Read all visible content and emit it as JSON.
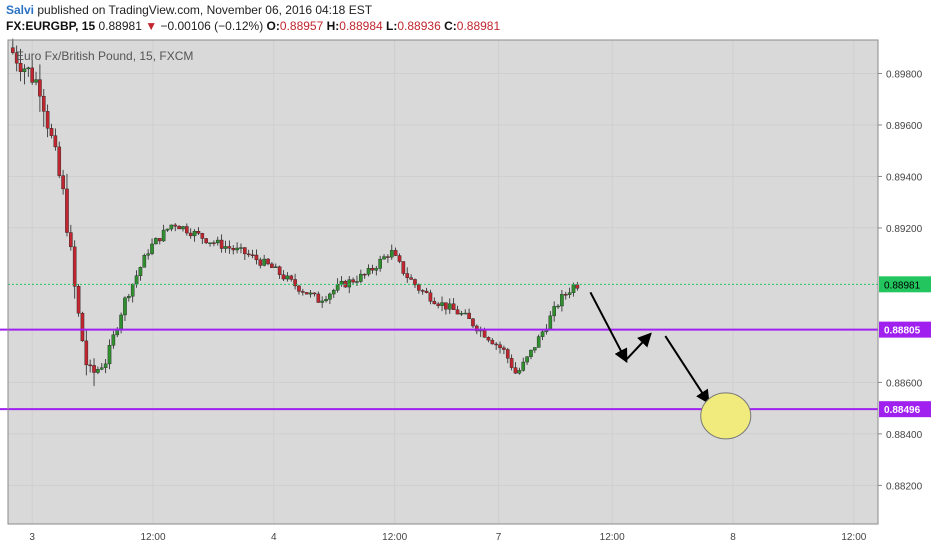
{
  "header": {
    "author": "Salvi",
    "published_text": "published on TradingView.com, November 06, 2016 04:18 EST",
    "symbol": "FX:EURGBP, 15",
    "last": "0.88981",
    "change": "−0.00106 (−0.12%)",
    "open_label": "O:",
    "open": "0.88957",
    "high_label": "H:",
    "high": "0.88984",
    "low_label": "L:",
    "low": "0.88936",
    "close_label": "C:",
    "close": "0.88981"
  },
  "chart_data": {
    "type": "candlestick",
    "title": "Euro Fx/British Pound, 15, FXCM",
    "ylim": [
      0.8805,
      0.8993
    ],
    "y_ticks": [
      "0.89800",
      "0.89600",
      "0.89400",
      "0.89200",
      "0.88600",
      "0.88400",
      "0.88200"
    ],
    "x_ticks": [
      "3",
      "12:00",
      "4",
      "12:00",
      "7",
      "12:00",
      "8",
      "12:00"
    ],
    "current_price": {
      "label": "0.88981",
      "value": 0.88981,
      "color": "#22c55e"
    },
    "levels": [
      {
        "label": "0.88805",
        "value": 0.88805,
        "color": "#a020f0"
      },
      {
        "label": "0.88496",
        "value": 0.88496,
        "color": "#a020f0"
      }
    ],
    "colors": {
      "up": "#2f8f2f",
      "down": "#c0262f",
      "background": "#d9d9d9",
      "target": "#f0eb7c"
    },
    "price_path": [
      [
        0.2,
        0.899
      ],
      [
        1.5,
        0.8975
      ],
      [
        2.5,
        0.893
      ],
      [
        3.0,
        0.889
      ],
      [
        3.5,
        0.8862
      ],
      [
        4.2,
        0.8868
      ],
      [
        5.0,
        0.8892
      ],
      [
        6.0,
        0.8912
      ],
      [
        7.0,
        0.8922
      ],
      [
        8.5,
        0.8915
      ],
      [
        10.0,
        0.891
      ],
      [
        11.0,
        0.8905
      ],
      [
        12.0,
        0.8898
      ],
      [
        13.0,
        0.8892
      ],
      [
        14.0,
        0.8898
      ],
      [
        15.0,
        0.8902
      ],
      [
        16.0,
        0.8911
      ],
      [
        16.6,
        0.8902
      ],
      [
        17.2,
        0.8896
      ],
      [
        18.0,
        0.8891
      ],
      [
        19.0,
        0.8886
      ],
      [
        20.0,
        0.8878
      ],
      [
        20.7,
        0.8872
      ],
      [
        21.2,
        0.8863
      ],
      [
        21.7,
        0.887
      ],
      [
        22.3,
        0.888
      ],
      [
        23.0,
        0.8892
      ],
      [
        23.6,
        0.8898
      ]
    ],
    "annotations": [
      {
        "type": "arrow",
        "from": [
          24.1,
          0.8895
        ],
        "to": [
          25.6,
          0.8868
        ]
      },
      {
        "type": "arrow",
        "from": [
          25.6,
          0.8869
        ],
        "to": [
          26.6,
          0.8879
        ]
      },
      {
        "type": "arrow",
        "from": [
          27.2,
          0.8878
        ],
        "to": [
          29.0,
          0.8852
        ]
      },
      {
        "type": "circle",
        "center": [
          29.7,
          0.8847
        ]
      }
    ]
  }
}
